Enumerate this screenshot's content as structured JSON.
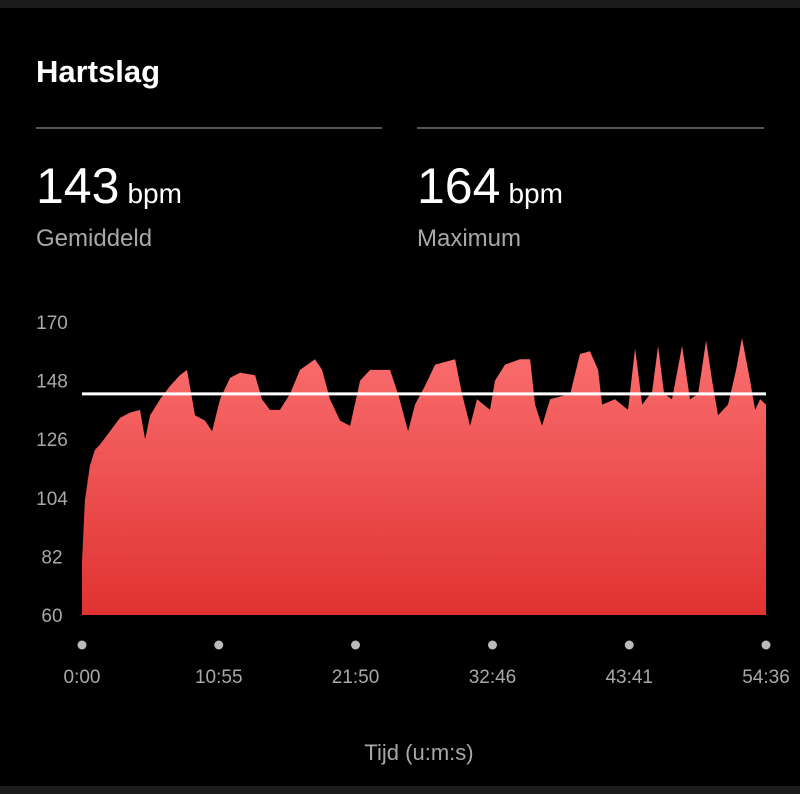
{
  "title": "Hartslag",
  "stats": [
    {
      "value": 143,
      "unit": "bpm",
      "label": "Gemiddeld"
    },
    {
      "value": 164,
      "unit": "bpm",
      "label": "Maximum"
    }
  ],
  "chart_data": {
    "type": "area",
    "x_label": "Tijd (u:m:s)",
    "x": [
      0,
      14,
      38,
      62,
      86,
      134,
      182,
      230,
      278,
      302,
      326,
      374,
      422,
      469,
      503,
      541,
      589,
      623,
      661,
      709,
      757,
      829,
      862,
      900,
      948,
      996,
      1044,
      1116,
      1150,
      1188,
      1236,
      1284,
      1332,
      1380,
      1475,
      1514,
      1562,
      1595,
      1643,
      1691,
      1787,
      1820,
      1859,
      1892,
      1954,
      1978,
      2026,
      2098,
      2146,
      2170,
      2203,
      2242,
      2338,
      2385,
      2433,
      2472,
      2491,
      2553,
      2615,
      2649,
      2683,
      2731,
      2759,
      2788,
      2826,
      2874,
      2912,
      2951,
      2989,
      3018,
      3046,
      3094,
      3133,
      3161,
      3200,
      3224,
      3248,
      3276
    ],
    "values": [
      80,
      103,
      116,
      122,
      124,
      129,
      134,
      136,
      137,
      126,
      135,
      141,
      146,
      150,
      152,
      135,
      133,
      129,
      141,
      149,
      151,
      150,
      141,
      137,
      137,
      143,
      152,
      156,
      152,
      141,
      133,
      131,
      148,
      152,
      152,
      143,
      129,
      139,
      146,
      154,
      156,
      143,
      131,
      141,
      137,
      148,
      154,
      156,
      156,
      139,
      131,
      141,
      143,
      158,
      159,
      152,
      139,
      141,
      137,
      160,
      139,
      144,
      161,
      143,
      141,
      161,
      141,
      143,
      163,
      148,
      135,
      139,
      152,
      164,
      148,
      137,
      141,
      139
    ],
    "color": "#f25c5c",
    "xlim": [
      0,
      3276
    ],
    "ylim": [
      60,
      170
    ],
    "yticks": [
      60,
      82,
      104,
      126,
      148,
      170
    ],
    "xticks": [
      {
        "value": 0,
        "label": "0:00"
      },
      {
        "value": 655,
        "label": "10:55"
      },
      {
        "value": 1310,
        "label": "21:50"
      },
      {
        "value": 1966,
        "label": "32:46"
      },
      {
        "value": 2621,
        "label": "43:41"
      },
      {
        "value": 3276,
        "label": "54:36"
      }
    ]
  }
}
